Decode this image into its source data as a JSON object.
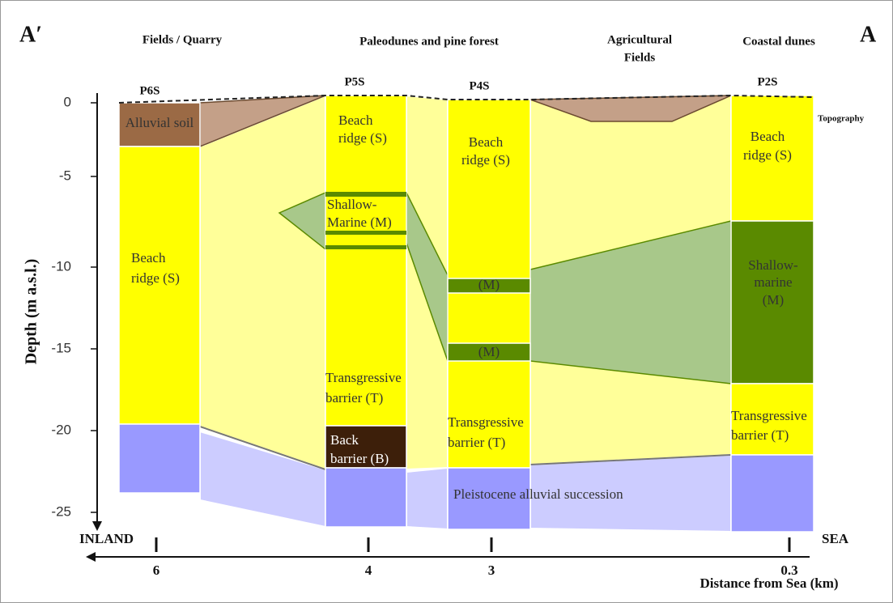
{
  "header": {
    "left_label": "A′",
    "right_label": "A"
  },
  "zones": [
    {
      "lines": [
        "Fields / Quarry"
      ]
    },
    {
      "lines": [
        "Paleodunes and pine forest"
      ]
    },
    {
      "lines": [
        "Agricultural",
        "Fields"
      ]
    },
    {
      "lines": [
        "Coastal dunes"
      ]
    }
  ],
  "boreholes": [
    "P6S",
    "P5S",
    "P4S",
    "P2S"
  ],
  "topography_label": "Topography",
  "layers": [
    {
      "lines": [
        "Alluvial soil"
      ]
    },
    {
      "lines": [
        "Beach",
        "ridge (S)"
      ]
    },
    {
      "lines": [
        "Beach",
        "ridge (S)"
      ]
    },
    {
      "lines": [
        "Shallow-",
        "Marine  (M)"
      ]
    },
    {
      "lines": [
        "Transgressive",
        "barrier (T)"
      ]
    },
    {
      "lines": [
        "Back",
        "barrier (B)"
      ]
    },
    {
      "lines": [
        "Beach",
        "ridge (S)"
      ]
    },
    {
      "lines": [
        "(M)"
      ]
    },
    {
      "lines": [
        "(M)"
      ]
    },
    {
      "lines": [
        "Transgressive",
        "barrier (T)"
      ]
    },
    {
      "lines": [
        "Pleistocene alluvial succession"
      ]
    },
    {
      "lines": [
        "Beach",
        "ridge (S)"
      ]
    },
    {
      "lines": [
        "Shallow-",
        "marine",
        "(M)"
      ]
    },
    {
      "lines": [
        "Transgressive",
        "barrier (T)"
      ]
    }
  ],
  "depth_axis": {
    "label": "Depth (m a.s.l.)",
    "ticks": [
      "0",
      "-5",
      "-10",
      "-15",
      "-20",
      "-25"
    ]
  },
  "distance_axis": {
    "label": "Distance from Sea (km)",
    "left": "INLAND",
    "right": "SEA",
    "ticks": [
      "6",
      "4",
      "3",
      "0.3"
    ]
  }
}
